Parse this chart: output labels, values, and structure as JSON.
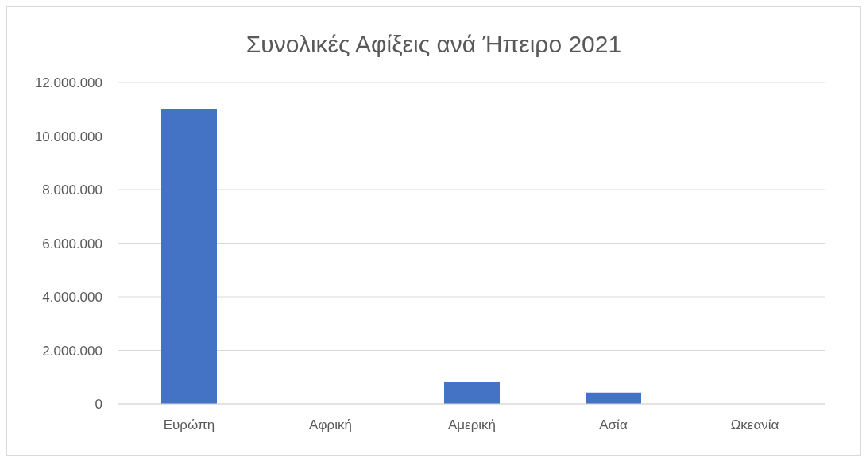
{
  "chart_data": {
    "type": "bar",
    "title": "Συνολικές Αφίξεις ανά Ήπειρο 2021",
    "categories": [
      "Ευρώπη",
      "Αφρική",
      "Αμερική",
      "Ασία",
      "Ωκεανία"
    ],
    "values": [
      11000000,
      0,
      800000,
      420000,
      0
    ],
    "color": "#4472c4",
    "ylim": [
      0,
      12000000
    ],
    "yticks": [
      {
        "value": 0,
        "label": "0"
      },
      {
        "value": 2000000,
        "label": "2.000.000"
      },
      {
        "value": 4000000,
        "label": "4.000.000"
      },
      {
        "value": 6000000,
        "label": "6.000.000"
      },
      {
        "value": 8000000,
        "label": "8.000.000"
      },
      {
        "value": 10000000,
        "label": "10.000.000"
      },
      {
        "value": 12000000,
        "label": "12.000.000"
      }
    ],
    "grid": "y",
    "legend": false
  }
}
